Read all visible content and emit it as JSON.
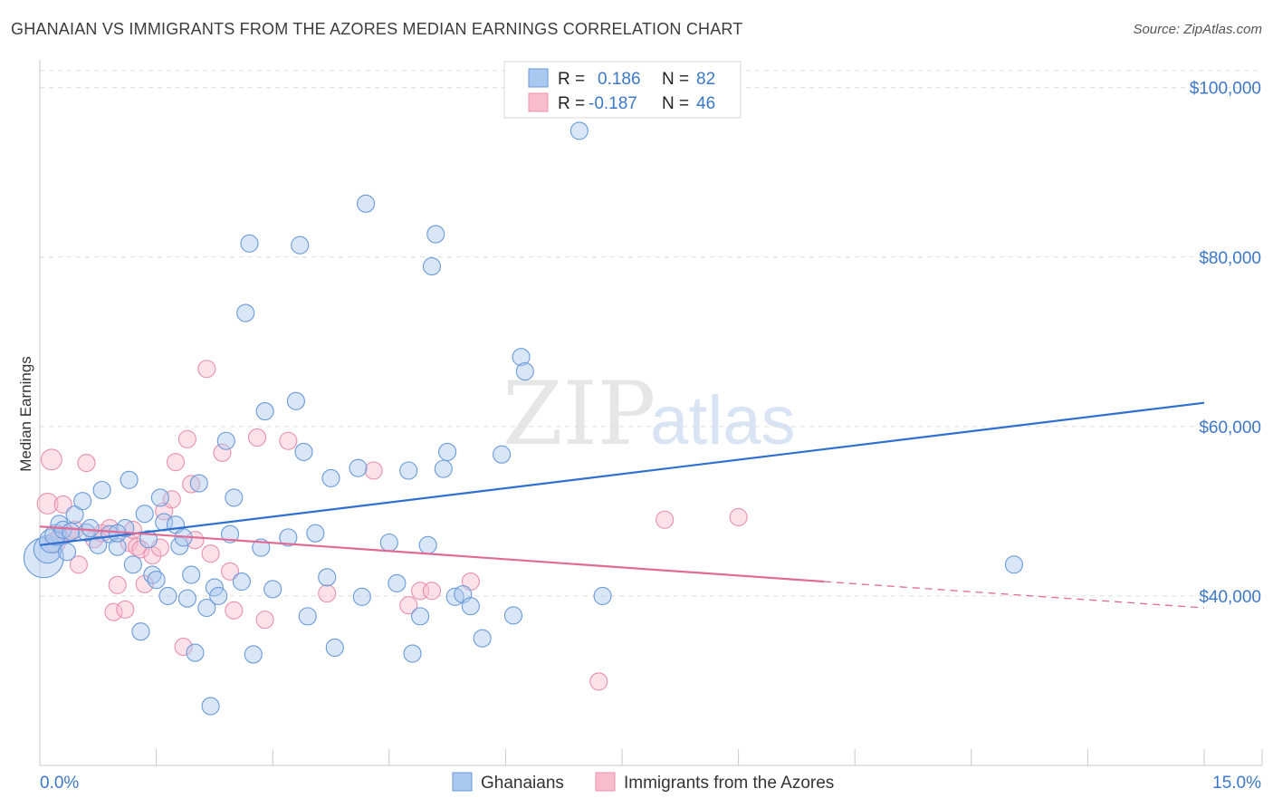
{
  "header": {
    "title": "GHANAIAN VS IMMIGRANTS FROM THE AZORES MEDIAN EARNINGS CORRELATION CHART",
    "source": "Source: ZipAtlas.com"
  },
  "watermark": {
    "zip": "ZIP",
    "atlas": "atlas"
  },
  "legend": {
    "rows": [
      {
        "r_label": "R =",
        "r_value": "0.186",
        "n_label": "N =",
        "n_value": "82",
        "color": "#7aa8e0"
      },
      {
        "r_label": "R =",
        "r_value": "-0.187",
        "n_label": "N =",
        "n_value": "46",
        "color": "#f0a0b8"
      }
    ]
  },
  "colors": {
    "ghanaians_fill": "#aac8f0",
    "ghanaians_stroke": "#6a9ad8",
    "ghanaians_line": "#2f6fd0",
    "azores_fill": "#f8bccd",
    "azores_stroke": "#e890ad",
    "azores_line": "#e06b95",
    "tick_text": "#3d78c8"
  },
  "chart_data": {
    "type": "scatter",
    "title": "GHANAIAN VS IMMIGRANTS FROM THE AZORES MEDIAN EARNINGS CORRELATION CHART",
    "xlabel": "",
    "ylabel": "Median Earnings",
    "xlim": [
      0,
      15
    ],
    "ylim": [
      20000,
      102000
    ],
    "x_tick_labels": [
      "0.0%",
      "15.0%"
    ],
    "y_ticks": [
      40000,
      60000,
      80000,
      100000
    ],
    "y_tick_labels": [
      "$40,000",
      "$60,000",
      "$80,000",
      "$100,000"
    ],
    "grid": true,
    "legend_position": "top-center",
    "series": [
      {
        "name": "Ghanaians",
        "r": 0.186,
        "n": 82,
        "trend": {
          "x": [
            0,
            15
          ],
          "y": [
            46000,
            62800
          ]
        },
        "points": [
          [
            0.05,
            44500,
            2.3
          ],
          [
            0.1,
            45500,
            1.6
          ],
          [
            0.15,
            46500,
            1.4
          ],
          [
            0.2,
            47200,
            1.2
          ],
          [
            0.25,
            48500,
            1
          ],
          [
            0.3,
            47800,
            1
          ],
          [
            0.35,
            45200,
            1
          ],
          [
            0.45,
            49600,
            1
          ],
          [
            0.55,
            51200,
            1
          ],
          [
            0.6,
            47500,
            1
          ],
          [
            0.75,
            46000,
            1
          ],
          [
            0.8,
            52500,
            1
          ],
          [
            0.9,
            47300,
            1
          ],
          [
            1.0,
            45800,
            1
          ],
          [
            1.1,
            48000,
            1
          ],
          [
            1.15,
            53700,
            1
          ],
          [
            1.2,
            43700,
            1
          ],
          [
            1.3,
            35800,
            1
          ],
          [
            1.35,
            49700,
            1
          ],
          [
            1.4,
            46700,
            1
          ],
          [
            1.45,
            42500,
            1
          ],
          [
            1.5,
            41900,
            1
          ],
          [
            1.55,
            51600,
            1
          ],
          [
            1.6,
            48700,
            1
          ],
          [
            1.65,
            40000,
            1
          ],
          [
            1.75,
            48400,
            1
          ],
          [
            1.8,
            45900,
            1
          ],
          [
            1.85,
            46900,
            1
          ],
          [
            1.9,
            39700,
            1
          ],
          [
            1.95,
            42500,
            1
          ],
          [
            2.0,
            33300,
            1
          ],
          [
            2.05,
            53300,
            1
          ],
          [
            2.15,
            38600,
            1
          ],
          [
            2.2,
            27000,
            1
          ],
          [
            2.25,
            41000,
            1
          ],
          [
            2.3,
            40000,
            1
          ],
          [
            2.4,
            58300,
            1
          ],
          [
            2.45,
            47300,
            1
          ],
          [
            2.5,
            51600,
            1
          ],
          [
            2.6,
            41700,
            1
          ],
          [
            2.65,
            73400,
            1
          ],
          [
            2.7,
            81600,
            1
          ],
          [
            2.75,
            33100,
            1
          ],
          [
            2.85,
            45700,
            1
          ],
          [
            2.9,
            61800,
            1
          ],
          [
            3.0,
            40800,
            1
          ],
          [
            3.2,
            46900,
            1
          ],
          [
            3.3,
            63000,
            1
          ],
          [
            3.35,
            81400,
            1
          ],
          [
            3.4,
            57000,
            1
          ],
          [
            3.45,
            37600,
            1
          ],
          [
            3.55,
            47400,
            1
          ],
          [
            3.7,
            42200,
            1
          ],
          [
            3.75,
            53900,
            1
          ],
          [
            3.8,
            33900,
            1
          ],
          [
            4.1,
            55100,
            1
          ],
          [
            4.15,
            39900,
            1
          ],
          [
            4.2,
            86300,
            1
          ],
          [
            4.5,
            46300,
            1
          ],
          [
            4.6,
            41500,
            1
          ],
          [
            4.75,
            54800,
            1
          ],
          [
            4.8,
            33200,
            1
          ],
          [
            4.9,
            37600,
            1
          ],
          [
            5.0,
            46000,
            1
          ],
          [
            5.05,
            78900,
            1
          ],
          [
            5.1,
            82700,
            1
          ],
          [
            5.2,
            55000,
            1
          ],
          [
            5.25,
            57000,
            1
          ],
          [
            5.35,
            39900,
            1
          ],
          [
            5.45,
            40200,
            1
          ],
          [
            5.55,
            38800,
            1
          ],
          [
            5.7,
            35000,
            1
          ],
          [
            5.95,
            56700,
            1
          ],
          [
            6.1,
            37700,
            1
          ],
          [
            6.2,
            68200,
            1
          ],
          [
            6.25,
            66500,
            1
          ],
          [
            6.95,
            94900,
            1
          ],
          [
            7.25,
            40000,
            1
          ],
          [
            12.55,
            43700,
            1
          ],
          [
            0.65,
            48000,
            1
          ],
          [
            1.0,
            47400,
            1
          ],
          [
            0.4,
            47600,
            1
          ]
        ]
      },
      {
        "name": "Immigrants from the Azores",
        "r": -0.187,
        "n": 46,
        "trend": {
          "x": [
            0,
            10.1
          ],
          "y": [
            48200,
            41700
          ]
        },
        "trend_dashed": {
          "x": [
            10.1,
            15
          ],
          "y": [
            41700,
            38600
          ]
        },
        "points": [
          [
            0.1,
            50900,
            1.2
          ],
          [
            0.15,
            56100,
            1.2
          ],
          [
            0.2,
            46300,
            1.2
          ],
          [
            0.25,
            47000,
            1
          ],
          [
            0.3,
            50800,
            1
          ],
          [
            0.35,
            47300,
            1
          ],
          [
            0.45,
            47800,
            1
          ],
          [
            0.5,
            43700,
            1
          ],
          [
            0.6,
            55700,
            1
          ],
          [
            0.7,
            46700,
            1
          ],
          [
            0.8,
            47400,
            1
          ],
          [
            0.9,
            48000,
            1
          ],
          [
            0.95,
            38100,
            1
          ],
          [
            1.0,
            41300,
            1
          ],
          [
            1.1,
            38400,
            1
          ],
          [
            1.15,
            46300,
            1
          ],
          [
            1.2,
            47800,
            1
          ],
          [
            1.25,
            45800,
            1
          ],
          [
            1.3,
            45500,
            1
          ],
          [
            1.35,
            41400,
            1
          ],
          [
            1.45,
            44800,
            1
          ],
          [
            1.55,
            45700,
            1
          ],
          [
            1.6,
            50000,
            1
          ],
          [
            1.7,
            51400,
            1
          ],
          [
            1.75,
            55800,
            1
          ],
          [
            1.85,
            34000,
            1
          ],
          [
            1.9,
            58500,
            1
          ],
          [
            1.95,
            53200,
            1
          ],
          [
            2.0,
            46600,
            1
          ],
          [
            2.15,
            66800,
            1
          ],
          [
            2.2,
            45000,
            1
          ],
          [
            2.35,
            56900,
            1
          ],
          [
            2.45,
            42900,
            1
          ],
          [
            2.5,
            38300,
            1
          ],
          [
            2.8,
            58700,
            1
          ],
          [
            2.9,
            37200,
            1
          ],
          [
            3.2,
            58300,
            1
          ],
          [
            3.7,
            40300,
            1
          ],
          [
            4.3,
            54800,
            1
          ],
          [
            4.75,
            38900,
            1
          ],
          [
            4.9,
            40600,
            1
          ],
          [
            5.05,
            40600,
            1
          ],
          [
            5.55,
            41700,
            1
          ],
          [
            7.2,
            29900,
            1
          ],
          [
            8.05,
            49000,
            1
          ],
          [
            9.0,
            49300,
            1
          ]
        ]
      }
    ]
  },
  "bottom_legend": {
    "items": [
      {
        "label": "Ghanaians"
      },
      {
        "label": "Immigrants from the Azores"
      }
    ]
  }
}
